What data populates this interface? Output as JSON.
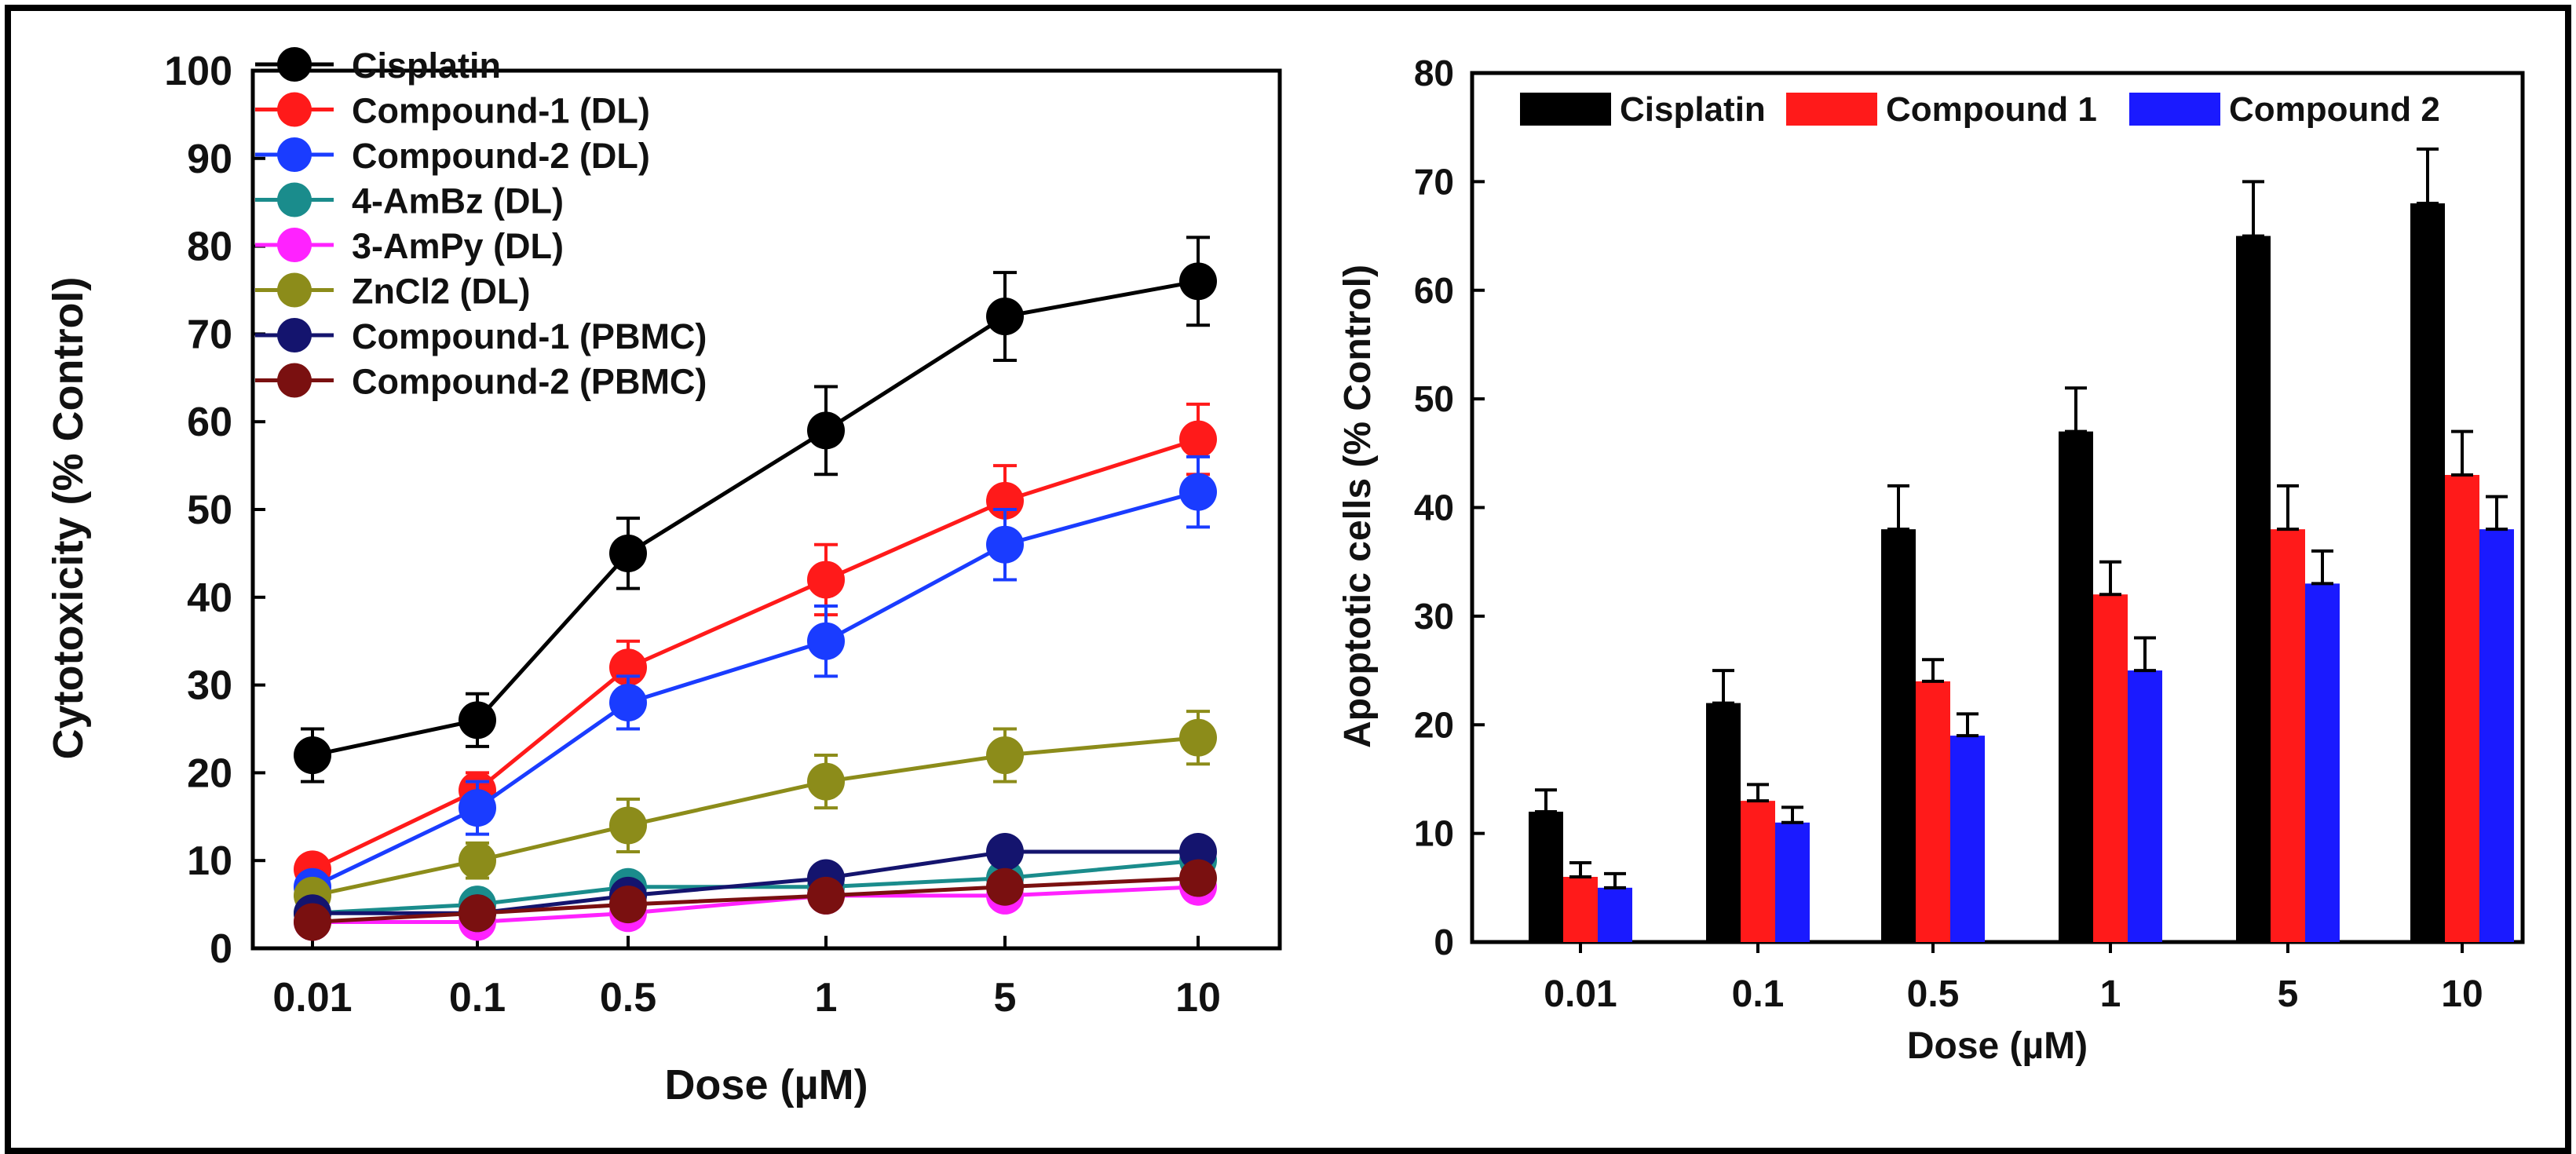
{
  "chart_data": [
    {
      "type": "line",
      "xlabel": "Dose (µM)",
      "ylabel": "Cytotoxicity (% Control)",
      "categories": [
        "0.01",
        "0.1",
        "0.5",
        "1",
        "5",
        "10"
      ],
      "ylim": [
        0,
        100
      ],
      "yticks": [
        "0",
        "10",
        "20",
        "30",
        "40",
        "50",
        "60",
        "70",
        "80",
        "90",
        "100"
      ],
      "legend_position": "top-left",
      "series": [
        {
          "name": "Cisplatin",
          "color": "#000000",
          "values": [
            22,
            26,
            45,
            59,
            72,
            76
          ],
          "errors": [
            3,
            3,
            4,
            5,
            5,
            5
          ]
        },
        {
          "name": "Compound-1 (DL)",
          "color": "#ff1a1a",
          "values": [
            9,
            18,
            32,
            42,
            51,
            58
          ],
          "errors": [
            1,
            2,
            3,
            4,
            4,
            4
          ]
        },
        {
          "name": "Compound-2 (DL)",
          "color": "#1a3cff",
          "values": [
            7,
            16,
            28,
            35,
            46,
            52
          ],
          "errors": [
            1,
            3,
            3,
            4,
            4,
            4
          ]
        },
        {
          "name": "4-AmBz (DL)",
          "color": "#1a8c8c",
          "values": [
            4,
            5,
            7,
            7,
            8,
            10
          ],
          "errors": [
            1,
            1,
            1,
            1,
            1,
            1
          ]
        },
        {
          "name": "3-AmPy (DL)",
          "color": "#ff22ff",
          "values": [
            3,
            3,
            4,
            6,
            6,
            7
          ],
          "errors": [
            1,
            1,
            1,
            1,
            1,
            1
          ]
        },
        {
          "name": "ZnCl2 (DL)",
          "color": "#8c8c1a",
          "values": [
            6,
            10,
            14,
            19,
            22,
            24
          ],
          "errors": [
            1,
            2,
            3,
            3,
            3,
            3
          ]
        },
        {
          "name": "Compound-1 (PBMC)",
          "color": "#14146e",
          "values": [
            4,
            4,
            6,
            8,
            11,
            11
          ],
          "errors": [
            1,
            1,
            1,
            1,
            1,
            1
          ]
        },
        {
          "name": "Compound-2 (PBMC)",
          "color": "#7a1010",
          "values": [
            3,
            4,
            5,
            6,
            7,
            8
          ],
          "errors": [
            1,
            1,
            1,
            1,
            1,
            1
          ]
        }
      ]
    },
    {
      "type": "bar",
      "xlabel": "Dose (µM)",
      "ylabel": "Apoptotic cells (% Control)",
      "categories": [
        "0.01",
        "0.1",
        "0.5",
        "1",
        "5",
        "10"
      ],
      "ylim": [
        0,
        80
      ],
      "yticks": [
        "0",
        "10",
        "20",
        "30",
        "40",
        "50",
        "60",
        "70",
        "80"
      ],
      "legend_position": "top",
      "series": [
        {
          "name": "Cisplatin",
          "color": "#000000",
          "values": [
            12,
            22,
            38,
            47,
            65,
            68
          ],
          "errors": [
            2,
            3,
            4,
            4,
            5,
            5
          ]
        },
        {
          "name": "Compound 1",
          "color": "#ff1a1a",
          "values": [
            6,
            13,
            24,
            32,
            38,
            43
          ],
          "errors": [
            1.3,
            1.5,
            2,
            3,
            4,
            4
          ]
        },
        {
          "name": "Compound 2",
          "color": "#1a1aff",
          "values": [
            5,
            11,
            19,
            25,
            33,
            38
          ],
          "errors": [
            1.3,
            1.4,
            2,
            3,
            3,
            3
          ]
        }
      ]
    }
  ]
}
